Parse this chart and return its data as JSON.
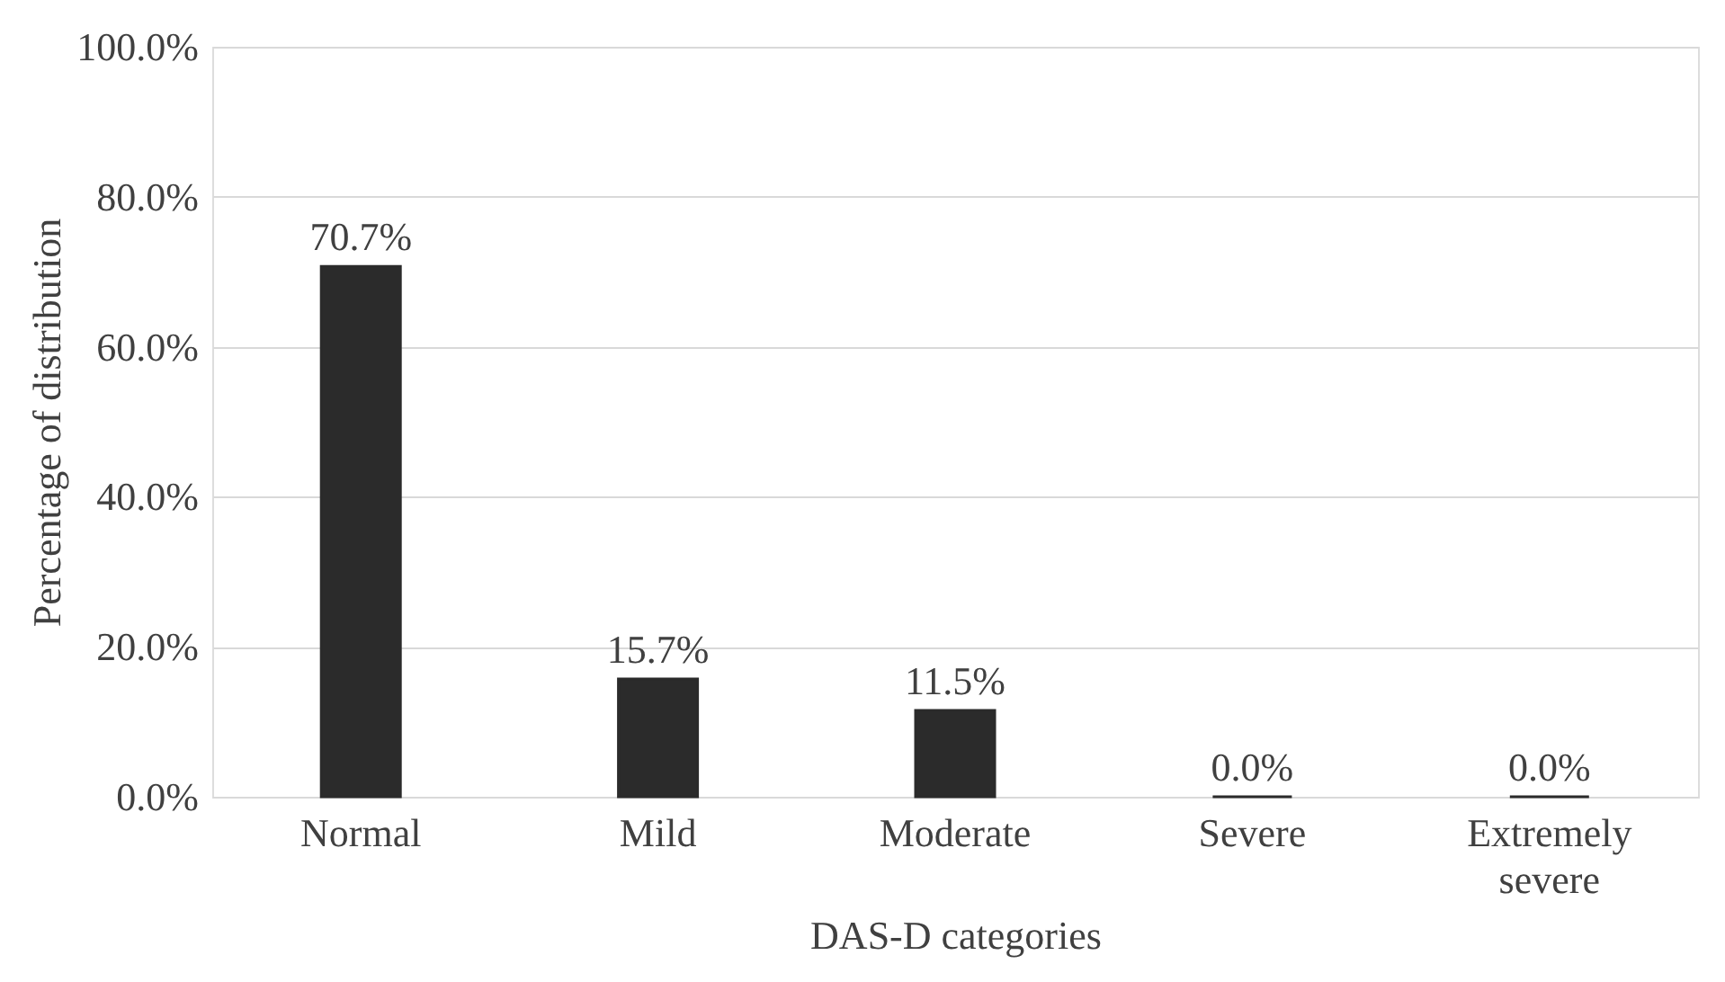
{
  "chart_data": {
    "type": "bar",
    "xlabel": "DAS-D categories",
    "ylabel": "Percentage of distribution",
    "categories": [
      "Normal",
      "Mild",
      "Moderate",
      "Severe",
      "Extremely severe"
    ],
    "values": [
      70.7,
      15.7,
      11.5,
      0.0,
      0.0
    ],
    "value_labels": [
      "70.7%",
      "15.7%",
      "11.5%",
      "0.0%",
      "0.0%"
    ],
    "color": "#2b2b2b",
    "ylim": [
      0,
      100
    ],
    "yticks": [
      {
        "value": 0,
        "label": "0.0%"
      },
      {
        "value": 20,
        "label": "20.0%"
      },
      {
        "value": 40,
        "label": "40.0%"
      },
      {
        "value": 60,
        "label": "60.0%"
      },
      {
        "value": 80,
        "label": "80.0%"
      },
      {
        "value": 100,
        "label": "100.0%"
      }
    ],
    "grid": "y"
  }
}
